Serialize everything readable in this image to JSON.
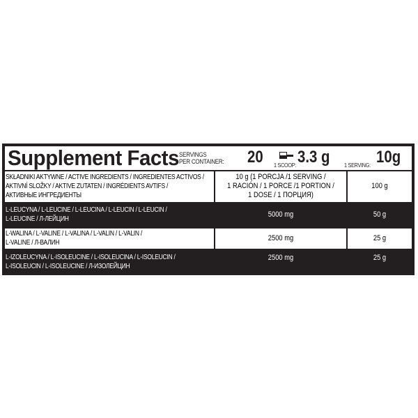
{
  "header": {
    "title": "Supplement Facts",
    "servings_label_1": "SERVINGS",
    "servings_label_2": "PER CONTAINER:",
    "servings_value": "20",
    "scoop_label": "1 SCOOP:",
    "scoop_value": "3.3 g",
    "serving_label": "1 SERVING:",
    "serving_value": "10g"
  },
  "columns": {
    "ingredients": [
      "SKŁADNIKI AKTYWNE / ACTIVE INGREDIENTS / INGREDIENTES ACTIVOS /",
      "AKTIVNÍ SLOŽKY / AKTIVE ZUTATEN / INGRÉDIENTS AVTIFS /",
      "АКТИВНЫЕ ИНГРЕДИЕНТЫ"
    ],
    "per_serving": [
      "10 g (1 PORCJA /1 SERVING /",
      "1 RACIÓN / 1 PORCE /1 PORTION /",
      "1 DOSE / 1 ПОРЦИЯ)"
    ],
    "per_100": "100 g"
  },
  "rows": [
    {
      "name": [
        "L-LEUCYNA / L-LEUCINE / L-LEUCINA / L-LEUCIN / L-LEUCIN /",
        "L-LEUCINE / Л-ЛЕЙЦИН"
      ],
      "per_serving": "5000 mg",
      "per_100": "50 g"
    },
    {
      "name": [
        "L-WALINA / L-VALINE / L-VALINA / L-VALIN / L-VALIN /",
        "L-VALINE / Л-ВАЛИН"
      ],
      "per_serving": "2500 mg",
      "per_100": "25 g"
    },
    {
      "name": [
        "L-IZOLEUCYNA / L-ISOLEUCINE / L-ISOLEUCINA / L-ISOLEUCIN /",
        "L-ISOLEUCIN / L-ISOLEUCINE / Л-ИЗОЛЕЙЦИН"
      ],
      "per_serving": "2500 mg",
      "per_100": "25 g"
    }
  ],
  "colors": {
    "dark": "#231f20",
    "light": "#ffffff"
  }
}
